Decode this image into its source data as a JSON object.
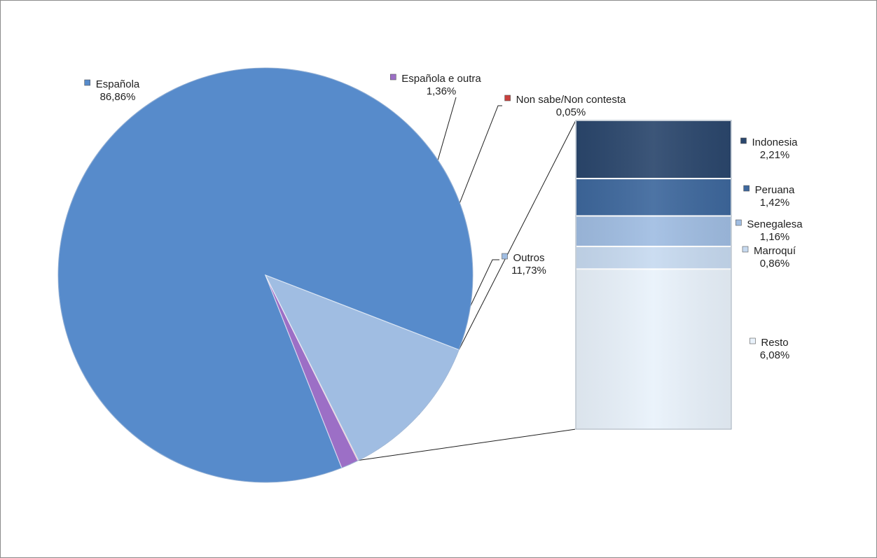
{
  "chart_data": {
    "type": "pie",
    "subtype": "bar-of-pie",
    "pie": {
      "slices": [
        {
          "label": "Española",
          "value": 86.86,
          "value_text": "86,86%",
          "color": "#578bcb"
        },
        {
          "label": "Española e outra",
          "value": 1.36,
          "value_text": "1,36%",
          "color": "#9c6fc6"
        },
        {
          "label": "Non sabe/Non contesta",
          "value": 0.05,
          "value_text": "0,05%",
          "color": "#c9413e"
        },
        {
          "label": "Outros",
          "value": 11.73,
          "value_text": "11,73%",
          "color": "#a0bde2"
        }
      ]
    },
    "bar": {
      "breakdown_of": "Outros",
      "segments": [
        {
          "label": "Indonesia",
          "value": 2.21,
          "value_text": "2,21%",
          "color": "#2b476d"
        },
        {
          "label": "Peruana",
          "value": 1.42,
          "value_text": "1,42%",
          "color": "#3e689d"
        },
        {
          "label": "Senegalesa",
          "value": 1.16,
          "value_text": "1,16%",
          "color": "#a0bde2"
        },
        {
          "label": "Marroquí",
          "value": 0.86,
          "value_text": "0,86%",
          "color": "#c7daf0"
        },
        {
          "label": "Resto",
          "value": 6.08,
          "value_text": "6,08%",
          "color": "#e9f2fb"
        }
      ]
    },
    "legend": "none",
    "data_labels": "category and percentage"
  }
}
